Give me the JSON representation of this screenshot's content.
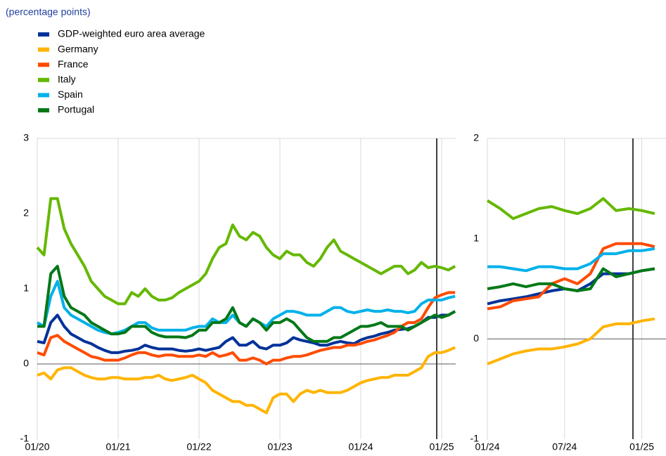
{
  "chart_data": [
    {
      "type": "line",
      "subtitle": "(percentage points)",
      "categories": [
        "01/20",
        null,
        null,
        null,
        null,
        null,
        null,
        null,
        null,
        null,
        null,
        null,
        "01/21",
        null,
        null,
        null,
        null,
        null,
        null,
        null,
        null,
        null,
        null,
        null,
        "01/22",
        null,
        null,
        null,
        null,
        null,
        null,
        null,
        null,
        null,
        null,
        null,
        "01/23",
        null,
        null,
        null,
        null,
        null,
        null,
        null,
        null,
        null,
        null,
        null,
        "01/24",
        null,
        null,
        null,
        null,
        null,
        null,
        null,
        null,
        null,
        null,
        null,
        "01/25",
        null,
        null
      ],
      "ylim": [
        -1,
        3
      ],
      "yticks": [
        -1,
        0,
        1,
        2,
        3
      ],
      "grid": true,
      "series": [
        {
          "name": "GDP-weighted euro area average",
          "color": "#003299",
          "values": [
            0.3,
            0.28,
            0.55,
            0.65,
            0.5,
            0.4,
            0.35,
            0.3,
            0.27,
            0.22,
            0.18,
            0.15,
            0.15,
            0.17,
            0.18,
            0.2,
            0.25,
            0.22,
            0.2,
            0.2,
            0.2,
            0.18,
            0.17,
            0.18,
            0.2,
            0.18,
            0.2,
            0.22,
            0.3,
            0.35,
            0.25,
            0.25,
            0.3,
            0.22,
            0.2,
            0.25,
            0.25,
            0.28,
            0.35,
            0.32,
            0.3,
            0.28,
            0.25,
            0.25,
            0.28,
            0.3,
            0.28,
            0.27,
            0.32,
            0.35,
            0.37,
            0.4,
            0.42,
            0.45,
            0.46,
            0.47,
            0.5,
            0.55,
            0.62,
            0.62,
            0.65,
            0.65,
            0.7
          ]
        },
        {
          "name": "Germany",
          "color": "#ffb400",
          "values": [
            -0.15,
            -0.12,
            -0.2,
            -0.08,
            -0.05,
            -0.05,
            -0.1,
            -0.15,
            -0.18,
            -0.2,
            -0.2,
            -0.18,
            -0.18,
            -0.2,
            -0.2,
            -0.2,
            -0.18,
            -0.18,
            -0.15,
            -0.2,
            -0.22,
            -0.2,
            -0.18,
            -0.15,
            -0.2,
            -0.25,
            -0.35,
            -0.4,
            -0.45,
            -0.5,
            -0.5,
            -0.55,
            -0.55,
            -0.6,
            -0.65,
            -0.45,
            -0.4,
            -0.4,
            -0.5,
            -0.4,
            -0.35,
            -0.38,
            -0.35,
            -0.38,
            -0.38,
            -0.38,
            -0.35,
            -0.3,
            -0.25,
            -0.22,
            -0.2,
            -0.18,
            -0.18,
            -0.15,
            -0.15,
            -0.15,
            -0.1,
            -0.05,
            0.1,
            0.15,
            0.15,
            0.18,
            0.22
          ]
        },
        {
          "name": "France",
          "color": "#ff4b00",
          "values": [
            0.15,
            0.12,
            0.35,
            0.38,
            0.3,
            0.25,
            0.2,
            0.15,
            0.1,
            0.08,
            0.05,
            0.05,
            0.05,
            0.08,
            0.12,
            0.15,
            0.15,
            0.12,
            0.1,
            0.12,
            0.12,
            0.1,
            0.1,
            0.1,
            0.12,
            0.1,
            0.15,
            0.1,
            0.12,
            0.15,
            0.05,
            0.05,
            0.08,
            0.05,
            0,
            0.05,
            0.05,
            0.08,
            0.1,
            0.1,
            0.12,
            0.15,
            0.18,
            0.2,
            0.22,
            0.22,
            0.25,
            0.25,
            0.27,
            0.3,
            0.32,
            0.35,
            0.38,
            0.42,
            0.5,
            0.55,
            0.55,
            0.6,
            0.75,
            0.88,
            0.92,
            0.95,
            0.95
          ]
        },
        {
          "name": "Italy",
          "color": "#65b800",
          "values": [
            1.55,
            1.45,
            2.2,
            2.2,
            1.8,
            1.6,
            1.45,
            1.3,
            1.1,
            1.0,
            0.9,
            0.85,
            0.8,
            0.8,
            0.95,
            0.9,
            1.0,
            0.9,
            0.85,
            0.85,
            0.88,
            0.95,
            1.0,
            1.05,
            1.1,
            1.2,
            1.4,
            1.55,
            1.6,
            1.85,
            1.7,
            1.65,
            1.75,
            1.7,
            1.55,
            1.45,
            1.4,
            1.5,
            1.45,
            1.45,
            1.35,
            1.3,
            1.4,
            1.55,
            1.65,
            1.5,
            1.45,
            1.4,
            1.35,
            1.3,
            1.25,
            1.2,
            1.25,
            1.3,
            1.3,
            1.2,
            1.25,
            1.35,
            1.28,
            1.3,
            1.28,
            1.25,
            1.3
          ]
        },
        {
          "name": "Spain",
          "color": "#00b1ea",
          "values": [
            0.55,
            0.5,
            0.9,
            1.1,
            0.75,
            0.65,
            0.6,
            0.55,
            0.5,
            0.45,
            0.42,
            0.4,
            0.42,
            0.45,
            0.5,
            0.55,
            0.55,
            0.48,
            0.45,
            0.45,
            0.45,
            0.45,
            0.45,
            0.48,
            0.5,
            0.5,
            0.6,
            0.55,
            0.55,
            0.65,
            0.55,
            0.5,
            0.6,
            0.55,
            0.5,
            0.6,
            0.65,
            0.7,
            0.7,
            0.68,
            0.65,
            0.65,
            0.65,
            0.7,
            0.75,
            0.75,
            0.7,
            0.68,
            0.7,
            0.72,
            0.7,
            0.7,
            0.72,
            0.7,
            0.7,
            0.68,
            0.7,
            0.8,
            0.85,
            0.85,
            0.85,
            0.88,
            0.9
          ]
        },
        {
          "name": "Portugal",
          "color": "#007816",
          "values": [
            0.5,
            0.5,
            1.2,
            1.3,
            0.9,
            0.75,
            0.7,
            0.65,
            0.55,
            0.5,
            0.45,
            0.4,
            0.4,
            0.42,
            0.5,
            0.5,
            0.5,
            0.42,
            0.38,
            0.36,
            0.36,
            0.36,
            0.35,
            0.38,
            0.45,
            0.45,
            0.55,
            0.55,
            0.6,
            0.75,
            0.55,
            0.5,
            0.6,
            0.55,
            0.45,
            0.55,
            0.55,
            0.6,
            0.55,
            0.45,
            0.35,
            0.3,
            0.3,
            0.3,
            0.35,
            0.35,
            0.4,
            0.45,
            0.5,
            0.5,
            0.52,
            0.55,
            0.5,
            0.5,
            0.5,
            0.45,
            0.5,
            0.55,
            0.6,
            0.65,
            0.62,
            0.65,
            0.7
          ]
        }
      ]
    },
    {
      "type": "line",
      "categories": [
        "01/24",
        null,
        null,
        null,
        null,
        null,
        "07/24",
        null,
        null,
        null,
        null,
        null,
        "01/25",
        null
      ],
      "ylim": [
        -1,
        2
      ],
      "yticks": [
        -1,
        0,
        1,
        2
      ],
      "grid": true,
      "series": [
        {
          "color": "#003299",
          "values": [
            0.35,
            0.38,
            0.4,
            0.42,
            0.45,
            0.48,
            0.5,
            0.48,
            0.55,
            0.65,
            0.65,
            0.65,
            0.68,
            0.7
          ]
        },
        {
          "color": "#ffb400",
          "values": [
            -0.25,
            -0.2,
            -0.15,
            -0.12,
            -0.1,
            -0.1,
            -0.08,
            -0.05,
            0,
            0.12,
            0.15,
            0.15,
            0.18,
            0.2
          ]
        },
        {
          "color": "#ff4b00",
          "values": [
            0.3,
            0.32,
            0.38,
            0.4,
            0.42,
            0.55,
            0.6,
            0.55,
            0.65,
            0.9,
            0.95,
            0.95,
            0.95,
            0.92
          ]
        },
        {
          "color": "#65b800",
          "values": [
            1.38,
            1.3,
            1.2,
            1.25,
            1.3,
            1.32,
            1.28,
            1.25,
            1.3,
            1.4,
            1.28,
            1.3,
            1.28,
            1.25
          ]
        },
        {
          "color": "#00b1ea",
          "values": [
            0.72,
            0.72,
            0.7,
            0.68,
            0.72,
            0.72,
            0.7,
            0.7,
            0.75,
            0.85,
            0.85,
            0.88,
            0.88,
            0.9
          ]
        },
        {
          "color": "#007816",
          "values": [
            0.5,
            0.52,
            0.55,
            0.52,
            0.55,
            0.55,
            0.5,
            0.48,
            0.5,
            0.7,
            0.62,
            0.65,
            0.68,
            0.7
          ]
        }
      ]
    }
  ]
}
